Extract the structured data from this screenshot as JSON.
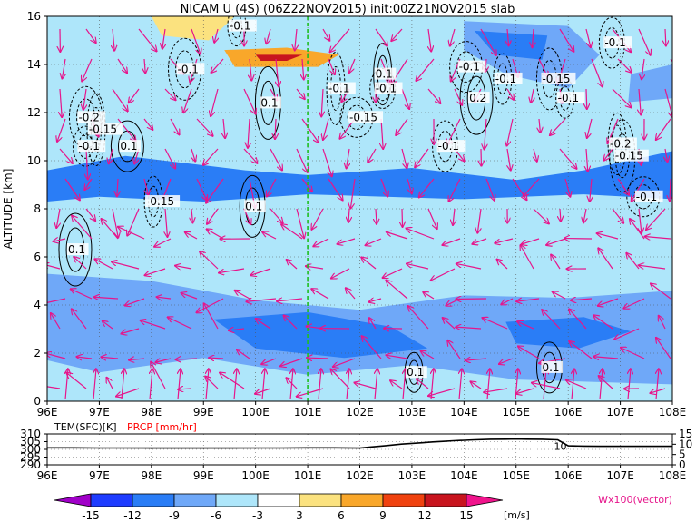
{
  "chart_data": [
    {
      "type": "heatmap",
      "title": "NICAM U (4S) (06Z22NOV2015) init:00Z21NOV2015 slab",
      "ylabel": "ALTITUDE [km]",
      "x_ticks": [
        "96E",
        "97E",
        "98E",
        "99E",
        "100E",
        "101E",
        "102E",
        "103E",
        "104E",
        "105E",
        "106E",
        "107E",
        "108E"
      ],
      "x_values": [
        96,
        97,
        98,
        99,
        100,
        101,
        102,
        103,
        104,
        105,
        106,
        107,
        108
      ],
      "xlim": [
        96,
        108
      ],
      "y_ticks": [
        "0",
        "2",
        "4",
        "6",
        "8",
        "10",
        "12",
        "14",
        "16"
      ],
      "y_values": [
        0,
        2,
        4,
        6,
        8,
        10,
        12,
        14,
        16
      ],
      "ylim": [
        0,
        16
      ],
      "grid": true,
      "reference_line_x": 101,
      "colorbar": {
        "unit": "[m/s]",
        "labels": [
          "-15",
          "-12",
          "-9",
          "-6",
          "-3",
          "3",
          "6",
          "9",
          "12",
          "15"
        ],
        "levels": [
          -15,
          -12,
          -9,
          -6,
          -3,
          3,
          6,
          9,
          12,
          15
        ],
        "colors": [
          "#a000c8",
          "#1e3cff",
          "#2a7df6",
          "#6fa8f8",
          "#aee6fa",
          "#ffffff",
          "#fbe27f",
          "#f9a72a",
          "#f0420f",
          "#c8141e",
          "#f0148c"
        ]
      },
      "regions": [
        {
          "v": -12,
          "pts": [
            [
              96,
              9.6
            ],
            [
              97.5,
              10.2
            ],
            [
              99.8,
              9.6
            ],
            [
              101,
              9.4
            ],
            [
              103,
              9.7
            ],
            [
              105,
              9.2
            ],
            [
              106.3,
              9.6
            ],
            [
              108,
              10.4
            ],
            [
              108,
              8.4
            ],
            [
              106.3,
              8.6
            ],
            [
              104,
              8.4
            ],
            [
              101,
              8.6
            ],
            [
              99,
              8.3
            ],
            [
              97,
              8.5
            ],
            [
              96,
              8.3
            ]
          ]
        },
        {
          "v": -9,
          "pts": [
            [
              96,
              5.3
            ],
            [
              98,
              5.0
            ],
            [
              100,
              4.2
            ],
            [
              102,
              3.8
            ],
            [
              104,
              4.4
            ],
            [
              106,
              4.3
            ],
            [
              108,
              4.6
            ],
            [
              108,
              0.7
            ],
            [
              105,
              0.9
            ],
            [
              103,
              1.5
            ],
            [
              101,
              1.1
            ],
            [
              99,
              1.8
            ],
            [
              97,
              1.2
            ],
            [
              96,
              1.7
            ]
          ]
        },
        {
          "v": -12,
          "pts": [
            [
              99.2,
              3.4
            ],
            [
              101,
              3.7
            ],
            [
              102.6,
              3.1
            ],
            [
              103.3,
              2.2
            ],
            [
              101.7,
              1.8
            ],
            [
              100,
              2.2
            ]
          ]
        },
        {
          "v": -12,
          "pts": [
            [
              104.8,
              3.3
            ],
            [
              106.3,
              3.5
            ],
            [
              107.2,
              2.9
            ],
            [
              106.2,
              2.2
            ],
            [
              105,
              2.4
            ]
          ]
        },
        {
          "v": -9,
          "pts": [
            [
              104,
              15.8
            ],
            [
              106,
              15.6
            ],
            [
              106.6,
              14.4
            ],
            [
              106,
              13.0
            ],
            [
              104.8,
              13.6
            ],
            [
              104,
              14.6
            ]
          ]
        },
        {
          "v": -12,
          "pts": [
            [
              104.2,
              15.4
            ],
            [
              105.6,
              15.2
            ],
            [
              105.5,
              14.2
            ],
            [
              104.6,
              14.4
            ]
          ]
        },
        {
          "v": -9,
          "pts": [
            [
              107.2,
              13.6
            ],
            [
              108,
              14.0
            ],
            [
              108,
              10.6
            ],
            [
              107.1,
              11.2
            ]
          ]
        },
        {
          "v": -9,
          "pts": [
            [
              99.2,
              13.2
            ],
            [
              101,
              12.6
            ],
            [
              103.5,
              12.4
            ],
            [
              105,
              12.0
            ],
            [
              106,
              11.4
            ],
            [
              104,
              11.3
            ],
            [
              102,
              11.0
            ],
            [
              100,
              11.5
            ]
          ]
        },
        {
          "v": -6,
          "pts": [
            [
              96,
              12.6
            ],
            [
              98,
              12.8
            ],
            [
              100,
              13.4
            ],
            [
              102,
              12.9
            ],
            [
              104,
              12.8
            ],
            [
              106,
              12.2
            ],
            [
              108,
              12.6
            ],
            [
              108,
              10.6
            ],
            [
              106,
              10.5
            ],
            [
              104,
              10.7
            ],
            [
              102,
              10.2
            ],
            [
              100,
              10.6
            ],
            [
              98,
              10.4
            ],
            [
              96,
              10.9
            ]
          ]
        },
        {
          "v": 6,
          "pts": [
            [
              99.4,
              14.6
            ],
            [
              100.6,
              14.7
            ],
            [
              101.6,
              14.4
            ],
            [
              101.2,
              13.9
            ],
            [
              99.6,
              13.9
            ]
          ]
        },
        {
          "v": 12,
          "pts": [
            [
              100.0,
              14.4
            ],
            [
              100.9,
              14.4
            ],
            [
              100.6,
              14.15
            ],
            [
              100.1,
              14.15
            ]
          ]
        },
        {
          "v": 6,
          "pts": [
            [
              98.3,
              15.9
            ],
            [
              99.2,
              15.9
            ],
            [
              98.9,
              15.2
            ],
            [
              98.5,
              15.3
            ]
          ]
        },
        {
          "v": 3,
          "pts": [
            [
              98.0,
              16
            ],
            [
              99.6,
              16
            ],
            [
              99.1,
              15.0
            ],
            [
              98.2,
              15.2
            ]
          ]
        }
      ],
      "contours": [
        {
          "label": "-0.1",
          "x": 99.5,
          "y": 15.6,
          "dashed": true
        },
        {
          "label": "-0.1",
          "x": 106.7,
          "y": 14.9,
          "dashed": true
        },
        {
          "label": "-0.1",
          "x": 98.5,
          "y": 13.8,
          "dashed": true
        },
        {
          "label": "-0.1",
          "x": 101.4,
          "y": 13.0,
          "dashed": true
        },
        {
          "label": "-0.1",
          "x": 102.3,
          "y": 13.0,
          "dashed": true
        },
        {
          "label": "-0.1",
          "x": 103.9,
          "y": 13.9,
          "dashed": true
        },
        {
          "label": "0.1",
          "x": 102.3,
          "y": 13.6,
          "dashed": false
        },
        {
          "label": "0.1",
          "x": 100.1,
          "y": 12.4,
          "dashed": false
        },
        {
          "label": "-0.15",
          "x": 101.8,
          "y": 11.8,
          "dashed": true
        },
        {
          "label": "-0.1",
          "x": 104.6,
          "y": 13.4,
          "dashed": true
        },
        {
          "label": "-0.15",
          "x": 105.5,
          "y": 13.4,
          "dashed": true
        },
        {
          "label": "0.2",
          "x": 104.1,
          "y": 12.6,
          "dashed": false
        },
        {
          "label": "-0.1",
          "x": 105.8,
          "y": 12.6,
          "dashed": true
        },
        {
          "label": "-0.1",
          "x": 103.5,
          "y": 10.6,
          "dashed": true
        },
        {
          "label": "-0.2",
          "x": 96.6,
          "y": 11.8,
          "dashed": true
        },
        {
          "label": "-0.15",
          "x": 96.8,
          "y": 11.3,
          "dashed": true
        },
        {
          "label": "-0.1",
          "x": 96.6,
          "y": 10.6,
          "dashed": true
        },
        {
          "label": "0.1",
          "x": 97.4,
          "y": 10.6,
          "dashed": false
        },
        {
          "label": "-0.2",
          "x": 106.8,
          "y": 10.7,
          "dashed": true
        },
        {
          "label": "-0.15",
          "x": 106.9,
          "y": 10.2,
          "dashed": true
        },
        {
          "label": "-0.1",
          "x": 107.3,
          "y": 8.5,
          "dashed": true
        },
        {
          "label": "-0.15",
          "x": 97.9,
          "y": 8.3,
          "dashed": true
        },
        {
          "label": "0.1",
          "x": 99.8,
          "y": 8.1,
          "dashed": false
        },
        {
          "label": "0.1",
          "x": 96.4,
          "y": 6.3,
          "dashed": false
        },
        {
          "label": "0.1",
          "x": 102.9,
          "y": 1.2,
          "dashed": false
        },
        {
          "label": "0.1",
          "x": 105.5,
          "y": 1.4,
          "dashed": false
        }
      ],
      "vector_label": "Wx100(vector)"
    },
    {
      "type": "line",
      "series_labels": [
        "TEM(SFC)[K]",
        "PRCP [mm/hr]"
      ],
      "series_colors": [
        "#000000",
        "#ff0000"
      ],
      "x_ticks": [
        "96E",
        "97E",
        "98E",
        "99E",
        "100E",
        "101E",
        "102E",
        "103E",
        "104E",
        "105E",
        "106E",
        "107E",
        "108E"
      ],
      "x_values": [
        96,
        97,
        98,
        99,
        100,
        101,
        102,
        103,
        104,
        105,
        106,
        107,
        108
      ],
      "xlim": [
        96,
        108
      ],
      "left_axis_ticks": [
        "310",
        "305",
        "300",
        "295",
        "290"
      ],
      "left_axis_values": [
        310,
        305,
        300,
        295,
        290
      ],
      "left_ylim": [
        290,
        310
      ],
      "right_axis_ticks": [
        "15",
        "10",
        "5",
        "0"
      ],
      "right_axis_values": [
        15,
        10,
        5,
        0
      ],
      "right_ylim": [
        0,
        15
      ],
      "temperature": {
        "x": [
          96,
          96.5,
          97,
          97.5,
          98,
          98.5,
          99,
          99.5,
          100,
          100.5,
          101,
          101.5,
          102,
          102.2,
          102.5,
          102.8,
          103,
          103.2,
          103.4,
          103.6,
          103.8,
          104,
          104.2,
          104.5,
          104.8,
          105,
          105.2,
          105.5,
          105.8,
          106,
          106.3,
          106.6,
          107,
          107.5,
          108
        ],
        "y": [
          301.0,
          301.0,
          300.9,
          300.9,
          300.8,
          300.8,
          300.8,
          300.8,
          300.9,
          300.9,
          301.0,
          301.0,
          300.8,
          301.5,
          302.4,
          303.4,
          303.9,
          304.3,
          304.8,
          305.2,
          305.6,
          305.9,
          306.2,
          306.5,
          306.6,
          306.7,
          306.6,
          306.5,
          306.2,
          302.3,
          302.1,
          302.0,
          302.0,
          302.0,
          302.0
        ]
      },
      "precipitation": {
        "x": [
          96,
          108
        ],
        "y": [
          0,
          0
        ]
      },
      "annotation": {
        "label": "10",
        "x": 105.85,
        "y": 302.2
      }
    }
  ]
}
